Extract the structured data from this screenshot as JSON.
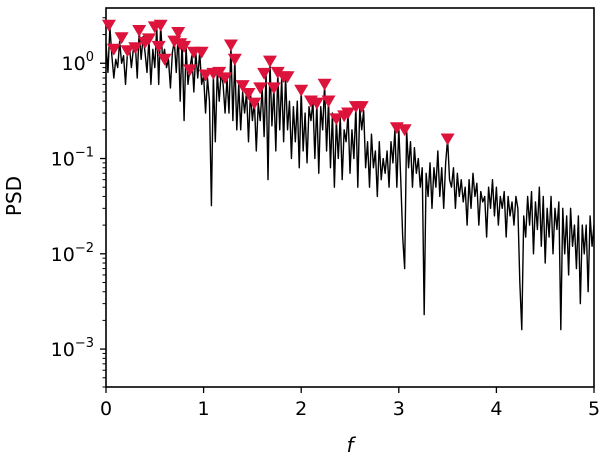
{
  "chart_data": {
    "type": "line",
    "xlabel": "f",
    "ylabel": "PSD",
    "xlim": [
      0,
      5
    ],
    "ylim": [
      0.0004,
      3.8
    ],
    "yscale": "log",
    "grid": false,
    "x_ticks": [
      0,
      1,
      2,
      3,
      4,
      5
    ],
    "x_tick_labels": [
      "0",
      "1",
      "2",
      "3",
      "4",
      "5"
    ],
    "y_ticks": [
      0.001,
      0.01,
      0.1,
      1
    ],
    "y_tick_labels": [
      {
        "base": "10",
        "exp": "−3"
      },
      {
        "base": "10",
        "exp": "−2"
      },
      {
        "base": "10",
        "exp": "−1"
      },
      {
        "base": "10",
        "exp": "0"
      }
    ],
    "colors": {
      "line": "#000000",
      "marker": "#dc143c"
    },
    "series": [
      {
        "style": "line",
        "points": [
          [
            0.0,
            1.6
          ],
          [
            0.02,
            0.8
          ],
          [
            0.04,
            2.4
          ],
          [
            0.06,
            1.2
          ],
          [
            0.08,
            0.7
          ],
          [
            0.1,
            1.1
          ],
          [
            0.12,
            0.9
          ],
          [
            0.14,
            1.7
          ],
          [
            0.16,
            1.0
          ],
          [
            0.18,
            1.2
          ],
          [
            0.2,
            0.6
          ],
          [
            0.22,
            1.3
          ],
          [
            0.24,
            1.5
          ],
          [
            0.26,
            0.9
          ],
          [
            0.28,
            1.4
          ],
          [
            0.3,
            1.6
          ],
          [
            0.32,
            0.7
          ],
          [
            0.34,
            2.2
          ],
          [
            0.36,
            1.1
          ],
          [
            0.38,
            1.9
          ],
          [
            0.4,
            1.3
          ],
          [
            0.42,
            0.8
          ],
          [
            0.44,
            1.8
          ],
          [
            0.46,
            0.6
          ],
          [
            0.48,
            1.4
          ],
          [
            0.5,
            0.9
          ],
          [
            0.52,
            2.4
          ],
          [
            0.54,
            0.6
          ],
          [
            0.56,
            2.5
          ],
          [
            0.58,
            1.1
          ],
          [
            0.6,
            1.4
          ],
          [
            0.62,
            0.9
          ],
          [
            0.64,
            1.1
          ],
          [
            0.66,
            0.55
          ],
          [
            0.68,
            1.3
          ],
          [
            0.7,
            1.7
          ],
          [
            0.72,
            0.8
          ],
          [
            0.74,
            2.1
          ],
          [
            0.76,
            0.4
          ],
          [
            0.78,
            1.8
          ],
          [
            0.8,
            0.25
          ],
          [
            0.82,
            1.5
          ],
          [
            0.84,
            0.6
          ],
          [
            0.86,
            0.9
          ],
          [
            0.88,
            1.2
          ],
          [
            0.9,
            0.5
          ],
          [
            0.92,
            1.3
          ],
          [
            0.94,
            0.7
          ],
          [
            0.96,
            1.3
          ],
          [
            0.98,
            0.6
          ],
          [
            1.0,
            0.75
          ],
          [
            1.02,
            0.3
          ],
          [
            1.04,
            0.7
          ],
          [
            1.06,
            0.4
          ],
          [
            1.08,
            0.032
          ],
          [
            1.1,
            0.75
          ],
          [
            1.12,
            0.15
          ],
          [
            1.14,
            0.8
          ],
          [
            1.16,
            0.4
          ],
          [
            1.18,
            0.8
          ],
          [
            1.2,
            0.6
          ],
          [
            1.22,
            0.3
          ],
          [
            1.24,
            0.7
          ],
          [
            1.26,
            0.3
          ],
          [
            1.28,
            1.5
          ],
          [
            1.3,
            0.25
          ],
          [
            1.32,
            1.1
          ],
          [
            1.34,
            0.2
          ],
          [
            1.36,
            0.6
          ],
          [
            1.38,
            0.2
          ],
          [
            1.4,
            0.5
          ],
          [
            1.42,
            0.3
          ],
          [
            1.44,
            0.5
          ],
          [
            1.46,
            0.15
          ],
          [
            1.48,
            0.5
          ],
          [
            1.5,
            0.25
          ],
          [
            1.52,
            0.4
          ],
          [
            1.54,
            0.12
          ],
          [
            1.56,
            0.38
          ],
          [
            1.58,
            0.25
          ],
          [
            1.6,
            0.55
          ],
          [
            1.62,
            0.17
          ],
          [
            1.64,
            0.8
          ],
          [
            1.66,
            0.06
          ],
          [
            1.68,
            1.05
          ],
          [
            1.7,
            0.22
          ],
          [
            1.72,
            0.55
          ],
          [
            1.74,
            0.12
          ],
          [
            1.76,
            0.8
          ],
          [
            1.78,
            0.2
          ],
          [
            1.8,
            0.7
          ],
          [
            1.82,
            0.15
          ],
          [
            1.84,
            0.72
          ],
          [
            1.86,
            0.2
          ],
          [
            1.88,
            0.4
          ],
          [
            1.9,
            0.1
          ],
          [
            1.92,
            0.35
          ],
          [
            1.94,
            0.15
          ],
          [
            1.96,
            0.4
          ],
          [
            1.98,
            0.08
          ],
          [
            2.0,
            0.52
          ],
          [
            2.02,
            0.12
          ],
          [
            2.04,
            0.3
          ],
          [
            2.06,
            0.09
          ],
          [
            2.08,
            0.35
          ],
          [
            2.1,
            0.25
          ],
          [
            2.12,
            0.4
          ],
          [
            2.14,
            0.1
          ],
          [
            2.16,
            0.38
          ],
          [
            2.18,
            0.07
          ],
          [
            2.2,
            0.35
          ],
          [
            2.22,
            0.2
          ],
          [
            2.24,
            0.6
          ],
          [
            2.26,
            0.12
          ],
          [
            2.28,
            0.4
          ],
          [
            2.3,
            0.08
          ],
          [
            2.32,
            0.3
          ],
          [
            2.34,
            0.05
          ],
          [
            2.36,
            0.25
          ],
          [
            2.38,
            0.1
          ],
          [
            2.4,
            0.28
          ],
          [
            2.42,
            0.06
          ],
          [
            2.44,
            0.2
          ],
          [
            2.46,
            0.15
          ],
          [
            2.48,
            0.3
          ],
          [
            2.5,
            0.07
          ],
          [
            2.52,
            0.2
          ],
          [
            2.54,
            0.1
          ],
          [
            2.56,
            0.35
          ],
          [
            2.58,
            0.05
          ],
          [
            2.6,
            0.34
          ],
          [
            2.62,
            0.2
          ],
          [
            2.64,
            0.32
          ],
          [
            2.66,
            0.08
          ],
          [
            2.68,
            0.15
          ],
          [
            2.7,
            0.05
          ],
          [
            2.72,
            0.18
          ],
          [
            2.74,
            0.08
          ],
          [
            2.76,
            0.12
          ],
          [
            2.78,
            0.04
          ],
          [
            2.8,
            0.15
          ],
          [
            2.82,
            0.06
          ],
          [
            2.84,
            0.1
          ],
          [
            2.86,
            0.07
          ],
          [
            2.88,
            0.12
          ],
          [
            2.9,
            0.05
          ],
          [
            2.92,
            0.15
          ],
          [
            2.94,
            0.09
          ],
          [
            2.96,
            0.2
          ],
          [
            2.98,
            0.05
          ],
          [
            3.0,
            0.21
          ],
          [
            3.02,
            0.06
          ],
          [
            3.04,
            0.015
          ],
          [
            3.06,
            0.007
          ],
          [
            3.08,
            0.2
          ],
          [
            3.1,
            0.08
          ],
          [
            3.12,
            0.15
          ],
          [
            3.14,
            0.05
          ],
          [
            3.16,
            0.13
          ],
          [
            3.18,
            0.07
          ],
          [
            3.2,
            0.1
          ],
          [
            3.22,
            0.05
          ],
          [
            3.24,
            0.08
          ],
          [
            3.26,
            0.0023
          ],
          [
            3.28,
            0.07
          ],
          [
            3.3,
            0.04
          ],
          [
            3.32,
            0.09
          ],
          [
            3.34,
            0.03
          ],
          [
            3.36,
            0.08
          ],
          [
            3.38,
            0.05
          ],
          [
            3.4,
            0.12
          ],
          [
            3.42,
            0.04
          ],
          [
            3.44,
            0.08
          ],
          [
            3.46,
            0.03
          ],
          [
            3.48,
            0.09
          ],
          [
            3.5,
            0.16
          ],
          [
            3.52,
            0.06
          ],
          [
            3.54,
            0.05
          ],
          [
            3.56,
            0.08
          ],
          [
            3.58,
            0.03
          ],
          [
            3.6,
            0.07
          ],
          [
            3.62,
            0.04
          ],
          [
            3.64,
            0.06
          ],
          [
            3.66,
            0.035
          ],
          [
            3.68,
            0.05
          ],
          [
            3.7,
            0.02
          ],
          [
            3.72,
            0.06
          ],
          [
            3.74,
            0.03
          ],
          [
            3.76,
            0.07
          ],
          [
            3.78,
            0.04
          ],
          [
            3.8,
            0.055
          ],
          [
            3.82,
            0.02
          ],
          [
            3.84,
            0.045
          ],
          [
            3.86,
            0.035
          ],
          [
            3.88,
            0.04
          ],
          [
            3.9,
            0.015
          ],
          [
            3.92,
            0.05
          ],
          [
            3.94,
            0.03
          ],
          [
            3.96,
            0.06
          ],
          [
            3.98,
            0.025
          ],
          [
            4.0,
            0.05
          ],
          [
            4.02,
            0.02
          ],
          [
            4.04,
            0.04
          ],
          [
            4.06,
            0.03
          ],
          [
            4.08,
            0.045
          ],
          [
            4.1,
            0.015
          ],
          [
            4.12,
            0.04
          ],
          [
            4.14,
            0.025
          ],
          [
            4.16,
            0.035
          ],
          [
            4.18,
            0.02
          ],
          [
            4.2,
            0.04
          ],
          [
            4.22,
            0.03
          ],
          [
            4.24,
            0.005
          ],
          [
            4.26,
            0.0016
          ],
          [
            4.28,
            0.025
          ],
          [
            4.3,
            0.015
          ],
          [
            4.32,
            0.04
          ],
          [
            4.34,
            0.02
          ],
          [
            4.36,
            0.045
          ],
          [
            4.38,
            0.01
          ],
          [
            4.4,
            0.035
          ],
          [
            4.42,
            0.018
          ],
          [
            4.44,
            0.05
          ],
          [
            4.46,
            0.012
          ],
          [
            4.48,
            0.04
          ],
          [
            4.5,
            0.008
          ],
          [
            4.52,
            0.03
          ],
          [
            4.54,
            0.015
          ],
          [
            4.56,
            0.04
          ],
          [
            4.58,
            0.01
          ],
          [
            4.6,
            0.03
          ],
          [
            4.62,
            0.018
          ],
          [
            4.64,
            0.035
          ],
          [
            4.66,
            0.0016
          ],
          [
            4.68,
            0.03
          ],
          [
            4.7,
            0.01
          ],
          [
            4.72,
            0.025
          ],
          [
            4.74,
            0.006
          ],
          [
            4.76,
            0.03
          ],
          [
            4.78,
            0.012
          ],
          [
            4.8,
            0.02
          ],
          [
            4.82,
            0.007
          ],
          [
            4.84,
            0.025
          ],
          [
            4.86,
            0.003
          ],
          [
            4.88,
            0.02
          ],
          [
            4.9,
            0.01
          ],
          [
            4.92,
            0.02
          ],
          [
            4.94,
            0.004
          ],
          [
            4.96,
            0.025
          ],
          [
            4.98,
            0.012
          ],
          [
            5.0,
            0.02
          ]
        ]
      },
      {
        "style": "markers",
        "marker": "triangle_down",
        "points": [
          [
            0.03,
            2.5
          ],
          [
            0.08,
            1.4
          ],
          [
            0.16,
            1.85
          ],
          [
            0.22,
            1.35
          ],
          [
            0.3,
            1.45
          ],
          [
            0.34,
            2.2
          ],
          [
            0.4,
            1.65
          ],
          [
            0.44,
            1.8
          ],
          [
            0.5,
            2.4
          ],
          [
            0.56,
            2.5
          ],
          [
            0.54,
            1.5
          ],
          [
            0.6,
            1.1
          ],
          [
            0.7,
            1.7
          ],
          [
            0.74,
            2.1
          ],
          [
            0.76,
            1.6
          ],
          [
            0.8,
            1.5
          ],
          [
            0.86,
            0.85
          ],
          [
            0.9,
            1.3
          ],
          [
            0.98,
            1.3
          ],
          [
            1.02,
            0.75
          ],
          [
            1.1,
            0.78
          ],
          [
            1.16,
            0.8
          ],
          [
            1.22,
            0.7
          ],
          [
            1.28,
            1.55
          ],
          [
            1.32,
            1.1
          ],
          [
            1.4,
            0.58
          ],
          [
            1.46,
            0.48
          ],
          [
            1.52,
            0.38
          ],
          [
            1.58,
            0.55
          ],
          [
            1.62,
            0.78
          ],
          [
            1.68,
            1.05
          ],
          [
            1.72,
            0.55
          ],
          [
            1.76,
            0.8
          ],
          [
            1.82,
            0.72
          ],
          [
            1.86,
            0.72
          ],
          [
            2.0,
            0.52
          ],
          [
            2.1,
            0.4
          ],
          [
            2.16,
            0.38
          ],
          [
            2.24,
            0.6
          ],
          [
            2.28,
            0.4
          ],
          [
            2.36,
            0.26
          ],
          [
            2.44,
            0.28
          ],
          [
            2.48,
            0.3
          ],
          [
            2.56,
            0.35
          ],
          [
            2.62,
            0.35
          ],
          [
            2.98,
            0.21
          ],
          [
            3.06,
            0.2
          ],
          [
            3.5,
            0.16
          ]
        ]
      }
    ]
  }
}
